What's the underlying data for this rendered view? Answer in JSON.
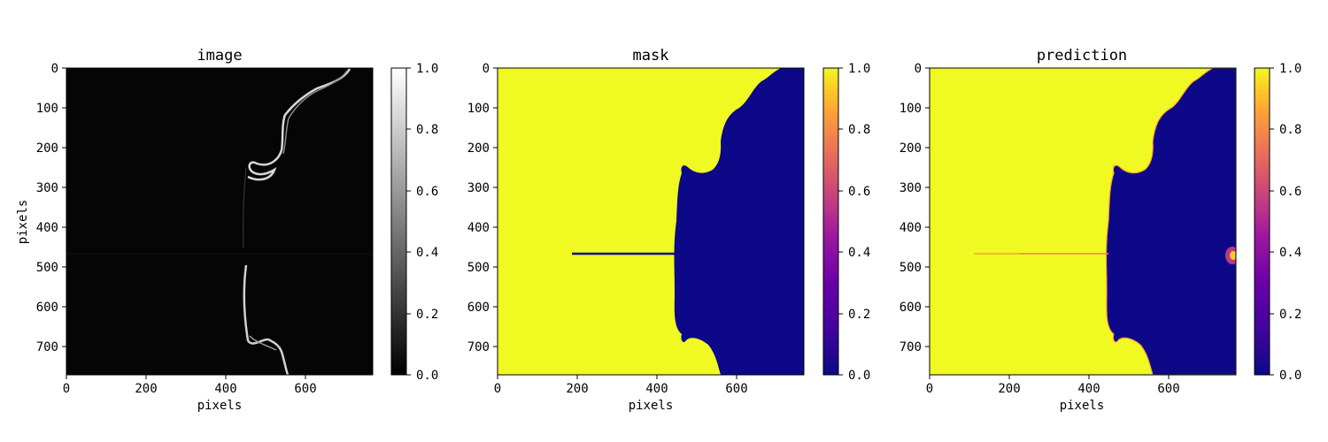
{
  "chart_data": [
    {
      "type": "heatmap",
      "title": "image",
      "xlabel": "pixels",
      "ylabel": "pixels",
      "xlim": [
        0,
        768
      ],
      "ylim": [
        768,
        0
      ],
      "xticks": [
        0,
        200,
        400,
        600
      ],
      "yticks": [
        0,
        100,
        200,
        300,
        400,
        500,
        600,
        700
      ],
      "colormap": "gray",
      "colorbar": {
        "range": [
          0,
          1
        ],
        "ticks": [
          "0.0",
          "0.2",
          "0.4",
          "0.6",
          "0.8",
          "1.0"
        ]
      },
      "content": "dark background with a thin bright edge curve (upper and lower arcs, symmetric about y≈470)"
    },
    {
      "type": "heatmap",
      "title": "mask",
      "xlabel": "pixels",
      "ylabel": "",
      "xlim": [
        0,
        768
      ],
      "ylim": [
        768,
        0
      ],
      "xticks": [
        0,
        200,
        400,
        600
      ],
      "yticks": [
        0,
        100,
        200,
        300,
        400,
        500,
        600,
        700
      ],
      "colormap": "plasma",
      "colorbar": {
        "range": [
          0,
          1
        ],
        "ticks": [
          "0.0",
          "0.2",
          "0.4",
          "0.6",
          "0.8",
          "1.0"
        ]
      },
      "content": "value 1.0 (yellow) on left region, value 0.0 (dark blue) on right region; thin horizontal line at y≈468 extending left to x≈190"
    },
    {
      "type": "heatmap",
      "title": "prediction",
      "xlabel": "pixels",
      "ylabel": "",
      "xlim": [
        0,
        768
      ],
      "ylim": [
        768,
        0
      ],
      "xticks": [
        0,
        200,
        400,
        600
      ],
      "yticks": [
        0,
        100,
        200,
        300,
        400,
        500,
        600,
        700
      ],
      "colormap": "plasma",
      "colorbar": {
        "range": [
          0,
          1
        ],
        "ticks": [
          "0.0",
          "0.2",
          "0.4",
          "0.6",
          "0.8",
          "1.0"
        ]
      },
      "content": "yellow left region, dark blue right region; faint line at y≈468; bright spot near right edge x≈760, y≈470"
    }
  ]
}
